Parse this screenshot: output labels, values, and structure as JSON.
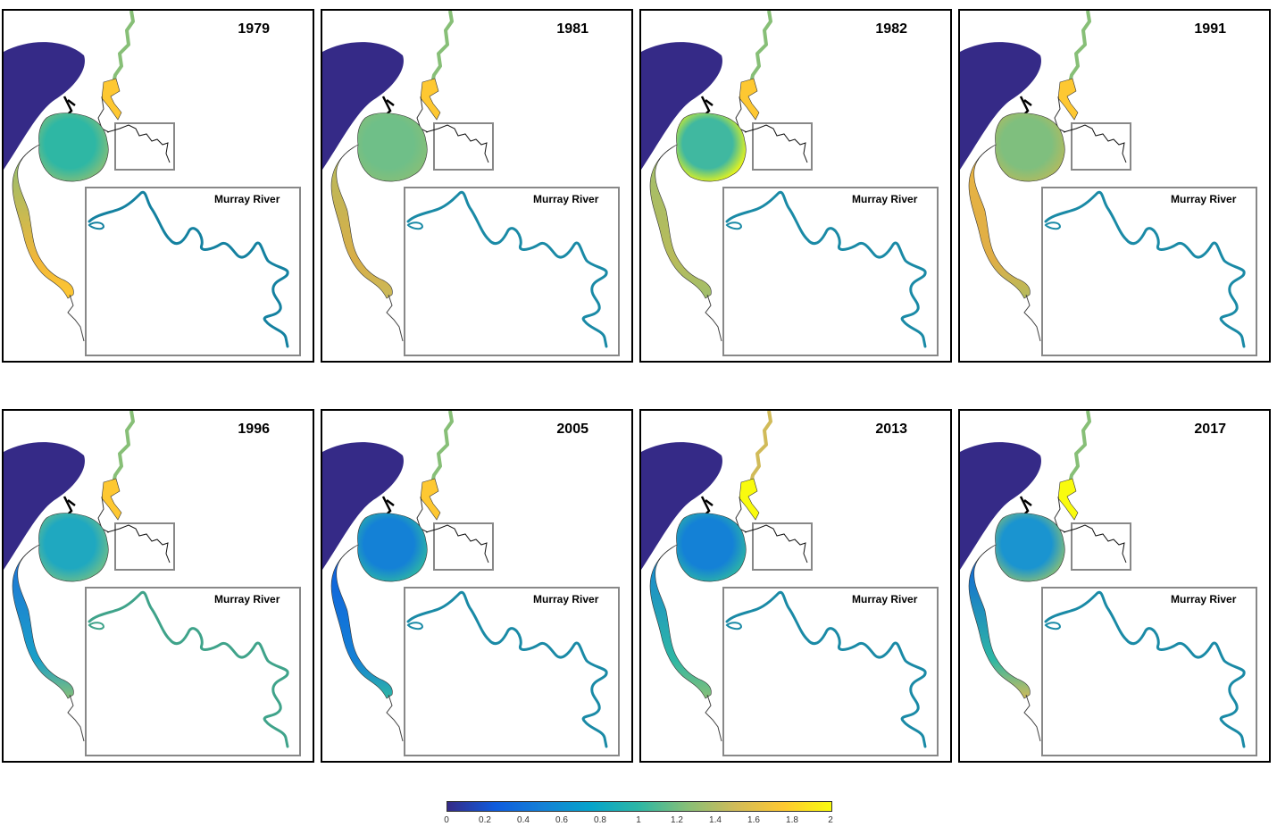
{
  "panels": [
    {
      "year": "1979",
      "inset_label": "Murray River",
      "colors": {
        "upper_channel": "#87bf77",
        "upper_lake": "#fec832",
        "lake": "#2eb7a4",
        "lake_edge": "#87bf77",
        "lagoon_top": "#87bf77",
        "lagoon_bottom": "#f2b73a",
        "lagoon_tip": "#fec832",
        "river": "#1481a0"
      }
    },
    {
      "year": "1981",
      "inset_label": "Murray River",
      "colors": {
        "upper_channel": "#87bf77",
        "upper_lake": "#fec832",
        "lake": "#6fbf88",
        "lake_edge": "#87bf77",
        "lagoon_top": "#b3bb5e",
        "lagoon_bottom": "#d9ae48",
        "lagoon_tip": "#c9ba5a",
        "river": "#1a8aa6"
      }
    },
    {
      "year": "1982",
      "inset_label": "Murray River",
      "colors": {
        "upper_channel": "#87bf77",
        "upper_lake": "#fec832",
        "lake": "#40b8a0",
        "lake_edge": "#f9fb0e",
        "lagoon_top": "#9fbf6c",
        "lagoon_bottom": "#b8bb5a",
        "lagoon_tip": "#9fbf6c",
        "river": "#1a8aa6"
      }
    },
    {
      "year": "1991",
      "inset_label": "Murray River",
      "colors": {
        "upper_channel": "#87bf77",
        "upper_lake": "#fec832",
        "lake": "#7fbf7e",
        "lake_edge": "#b3bb5e",
        "lagoon_top": "#e8b442",
        "lagoon_bottom": "#e0ae46",
        "lagoon_tip": "#b3bb5e",
        "river": "#1a8aa6"
      }
    },
    {
      "year": "1996",
      "inset_label": "Murray River",
      "colors": {
        "upper_channel": "#87bf77",
        "upper_lake": "#fec832",
        "lake": "#1fa8c0",
        "lake_edge": "#6fbf88",
        "lagoon_top": "#1f6fd8",
        "lagoon_bottom": "#1aa0c8",
        "lagoon_tip": "#87bf77",
        "river": "#3fa38a"
      }
    },
    {
      "year": "2005",
      "inset_label": "Murray River",
      "colors": {
        "upper_channel": "#87bf77",
        "upper_lake": "#fec832",
        "lake": "#1481d6",
        "lake_edge": "#2eb7a4",
        "lagoon_top": "#0f5cdd",
        "lagoon_bottom": "#1481d6",
        "lagoon_tip": "#2eb7a4",
        "river": "#1a8aa6"
      }
    },
    {
      "year": "2013",
      "inset_label": "Murray River",
      "colors": {
        "upper_channel": "#d1bb59",
        "upper_lake": "#f9fb0e",
        "lake": "#1481d6",
        "lake_edge": "#2eb7a4",
        "lagoon_top": "#1481d6",
        "lagoon_bottom": "#2eb7a4",
        "lagoon_tip": "#87bf77",
        "river": "#1a8aa6"
      }
    },
    {
      "year": "2017",
      "inset_label": "Murray River",
      "colors": {
        "upper_channel": "#87bf77",
        "upper_lake": "#f9fb0e",
        "lake": "#1a94d0",
        "lake_edge": "#87bf77",
        "lagoon_top": "#0f5cdd",
        "lagoon_bottom": "#2eb7a4",
        "lagoon_tip": "#d1bb59",
        "river": "#1a8aa6"
      }
    }
  ],
  "sea_color": "#352a87",
  "colorbar": {
    "min": 0,
    "max": 2,
    "ticks": [
      "0",
      "0.2",
      "0.4",
      "0.6",
      "0.8",
      "1",
      "1.2",
      "1.4",
      "1.6",
      "1.8",
      "2"
    ],
    "colors": [
      "#352a87",
      "#0f5cdd",
      "#1481d6",
      "#06a4ca",
      "#2eb7a4",
      "#87bf77",
      "#d1bb59",
      "#fec832",
      "#f9fb0e"
    ]
  }
}
